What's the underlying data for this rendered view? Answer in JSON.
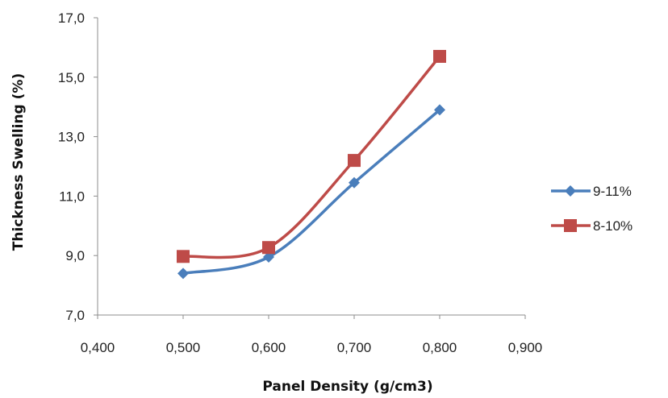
{
  "chart_data": {
    "type": "line",
    "title": "",
    "xlabel": "Panel Density (g/cm3)",
    "ylabel": "Thickness Swelling (%)",
    "xlim": [
      0.4,
      0.9
    ],
    "ylim": [
      7.0,
      17.0
    ],
    "x_ticks": [
      "0,400",
      "0,500",
      "0,600",
      "0,700",
      "0,800",
      "0,900"
    ],
    "y_ticks": [
      "17,0",
      "15,0",
      "13,0",
      "11,0",
      "9,0",
      "7,0"
    ],
    "grid": false,
    "smooth": true,
    "legend_position": "right",
    "x": [
      0.5,
      0.6,
      0.7,
      0.8
    ],
    "series": [
      {
        "name": "9-11%",
        "values": [
          8.4,
          8.95,
          11.45,
          13.9
        ],
        "color": "#4a7ebb",
        "marker": "diamond"
      },
      {
        "name": "8-10%",
        "values": [
          8.97,
          9.27,
          12.2,
          15.7
        ],
        "color": "#be4b48",
        "marker": "square"
      }
    ]
  }
}
